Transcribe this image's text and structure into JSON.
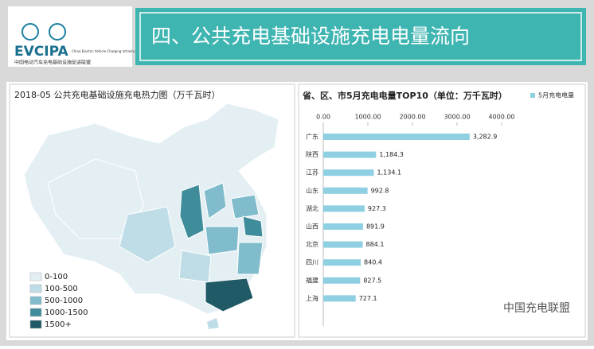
{
  "header": {
    "logo": "EVCIPA",
    "logo_en": "China Electric Vehicle Charging Infrastructure Promotion Alliance",
    "logo_cn": "中国电动汽车充电基础设施促进联盟",
    "title": "四、公共充电基础设施充电电量流向"
  },
  "map": {
    "title": "2018-05 公共充电基础设施充电热力图（万千瓦时）",
    "legend": [
      {
        "label": "0-100",
        "color": "#e4eff4"
      },
      {
        "label": "100-500",
        "color": "#bfdde6"
      },
      {
        "label": "500-1000",
        "color": "#80bccb"
      },
      {
        "label": "1000-1500",
        "color": "#3f8d9b"
      },
      {
        "label": "1500+",
        "color": "#1f5a66"
      }
    ]
  },
  "chart_data": {
    "type": "bar",
    "orientation": "horizontal",
    "title": "省、区、市5月充电电量TOP10（单位：万千瓦时）",
    "categories": [
      "广东",
      "陕西",
      "江苏",
      "山东",
      "湖北",
      "山西",
      "北京",
      "四川",
      "福建",
      "上海"
    ],
    "series": [
      {
        "name": "5月充电电量",
        "color": "#8ecfe2",
        "values": [
          3282.9,
          1184.3,
          1134.1,
          992.8,
          927.3,
          891.9,
          884.1,
          840.4,
          827.5,
          727.1
        ],
        "value_labels": [
          "3,282.9",
          "1,184.3",
          "1,134.1",
          "992.8",
          "927.3",
          "891.9",
          "884.1",
          "840.4",
          "827.5",
          "727.1"
        ]
      }
    ],
    "xlim": [
      0,
      4000
    ],
    "xticks": [
      {
        "value": 0,
        "label": "0.00"
      },
      {
        "value": 1000,
        "label": "1000.00"
      },
      {
        "value": 2000,
        "label": "2000.00"
      },
      {
        "value": 3000,
        "label": "3000.00"
      },
      {
        "value": 4000,
        "label": "4000.00"
      }
    ]
  },
  "watermark": "中国充电联盟"
}
